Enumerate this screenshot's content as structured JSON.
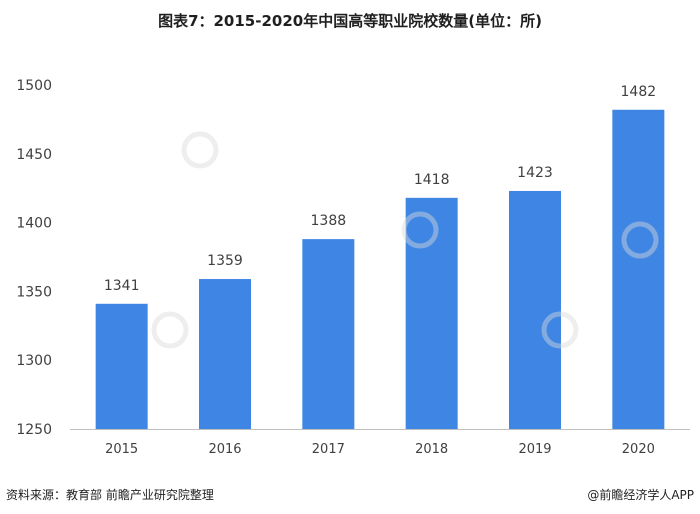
{
  "title": "图表7：2015-2020年中国高等职业院校数量(单位：所)",
  "source": "资料来源：教育部 前瞻产业研究院整理",
  "brand": "@前瞻经济学人APP",
  "colors": {
    "bar": "#3f86e4",
    "axis": "#bfbfbf",
    "text": "#404040"
  },
  "chart_data": {
    "type": "bar",
    "title": "图表7：2015-2020年中国高等职业院校数量(单位：所)",
    "categories": [
      "2015",
      "2016",
      "2017",
      "2018",
      "2019",
      "2020"
    ],
    "values": [
      1341,
      1359,
      1388,
      1418,
      1423,
      1482
    ],
    "xlabel": "",
    "ylabel": "",
    "ylim": [
      1250,
      1500
    ],
    "yticks": [
      1250,
      1300,
      1350,
      1400,
      1450,
      1500
    ],
    "grid": false,
    "legend": "none"
  }
}
